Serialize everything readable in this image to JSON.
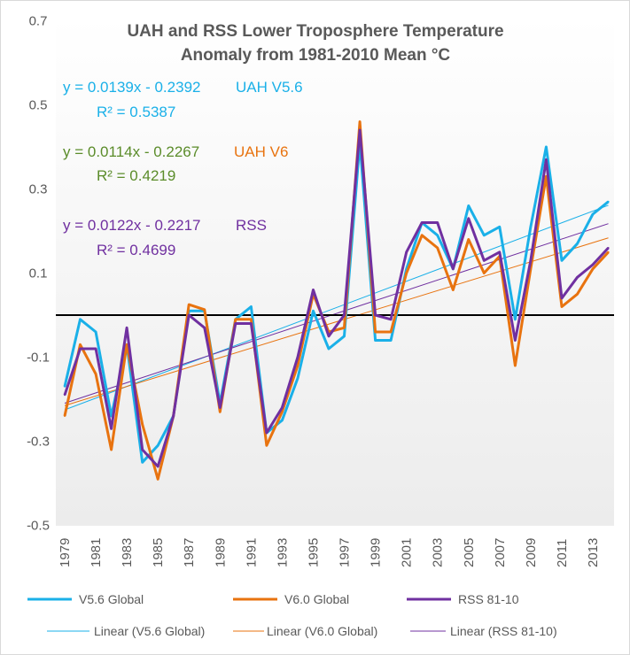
{
  "chart_data": {
    "type": "line",
    "title": [
      "UAH and RSS Lower Troposphere Temperature",
      "Anomaly from 1981-2010 Mean °C"
    ],
    "xlabel": "",
    "ylabel": "",
    "ylim": [
      -0.5,
      0.7
    ],
    "y_ticks": [
      "0.7",
      "0.5",
      "0.3",
      "0.1",
      "-0.1",
      "-0.3",
      "-0.5"
    ],
    "y_tick_values": [
      0.7,
      0.5,
      0.3,
      0.1,
      -0.1,
      -0.3,
      -0.5
    ],
    "x": [
      1979,
      1980,
      1981,
      1982,
      1983,
      1984,
      1985,
      1986,
      1987,
      1988,
      1989,
      1990,
      1991,
      1992,
      1993,
      1994,
      1995,
      1996,
      1997,
      1998,
      1999,
      2000,
      2001,
      2002,
      2003,
      2004,
      2005,
      2006,
      2007,
      2008,
      2009,
      2010,
      2011,
      2012,
      2013,
      2014
    ],
    "x_tick_labels": [
      "1979",
      "1981",
      "1983",
      "1985",
      "1987",
      "1989",
      "1991",
      "1993",
      "1995",
      "1997",
      "1999",
      "2001",
      "2003",
      "2005",
      "2007",
      "2009",
      "2011",
      "2013"
    ],
    "zero_line": 0,
    "grid": false,
    "legend_placement": "bottom",
    "series": [
      {
        "name": "V5.6 Global",
        "color": "#1ab0e8",
        "values": [
          -0.17,
          -0.01,
          -0.04,
          -0.24,
          -0.07,
          -0.35,
          -0.31,
          -0.24,
          0.01,
          0.01,
          -0.21,
          -0.01,
          0.02,
          -0.28,
          -0.25,
          -0.15,
          0.01,
          -0.08,
          -0.05,
          0.41,
          -0.06,
          -0.06,
          0.11,
          0.22,
          0.19,
          0.11,
          0.26,
          0.19,
          0.21,
          -0.01,
          0.21,
          0.4,
          0.13,
          0.17,
          0.24,
          0.27
        ]
      },
      {
        "name": "V6.0 Global",
        "color": "#e8730f",
        "values": [
          -0.24,
          -0.07,
          -0.14,
          -0.32,
          -0.07,
          -0.26,
          -0.39,
          -0.24,
          0.025,
          0.013,
          -0.23,
          -0.01,
          -0.01,
          -0.31,
          -0.23,
          -0.12,
          0.05,
          -0.04,
          -0.03,
          0.46,
          -0.04,
          -0.04,
          0.1,
          0.19,
          0.16,
          0.06,
          0.18,
          0.1,
          0.14,
          -0.12,
          0.11,
          0.33,
          0.02,
          0.05,
          0.11,
          0.15
        ]
      },
      {
        "name": "RSS 81-10",
        "color": "#7030a0",
        "values": [
          -0.19,
          -0.08,
          -0.08,
          -0.27,
          -0.03,
          -0.32,
          -0.36,
          -0.24,
          0.0,
          -0.03,
          -0.22,
          -0.02,
          -0.02,
          -0.28,
          -0.22,
          -0.1,
          0.06,
          -0.05,
          0.0,
          0.44,
          0.0,
          -0.01,
          0.15,
          0.22,
          0.22,
          0.11,
          0.23,
          0.13,
          0.15,
          -0.06,
          0.13,
          0.37,
          0.04,
          0.09,
          0.12,
          0.16
        ]
      }
    ],
    "trendlines": [
      {
        "name": "Linear (V5.6 Global)",
        "color": "#1ab0e8",
        "slope": 0.0139,
        "intercept": -0.2392
      },
      {
        "name": "Linear (V6.0 Global)",
        "color": "#e8730f",
        "slope": 0.0114,
        "intercept": -0.2267
      },
      {
        "name": "Linear (RSS 81-10)",
        "color": "#7030a0",
        "slope": 0.0122,
        "intercept": -0.2217
      }
    ],
    "annotations": [
      {
        "equation": "y = 0.0139x - 0.2392",
        "r2": "R² = 0.5387",
        "label": "UAH V5.6",
        "eq_color": "#1ab0e8",
        "label_color": "#1ab0e8"
      },
      {
        "equation": "y = 0.0114x - 0.2267",
        "r2": "R² = 0.4219",
        "label": "UAH V6",
        "eq_color": "#5b8c2a",
        "label_color": "#e8730f"
      },
      {
        "equation": "y = 0.0122x - 0.2217",
        "r2": "R² = 0.4699",
        "label": "RSS",
        "eq_color": "#7030a0",
        "label_color": "#7030a0"
      }
    ]
  }
}
